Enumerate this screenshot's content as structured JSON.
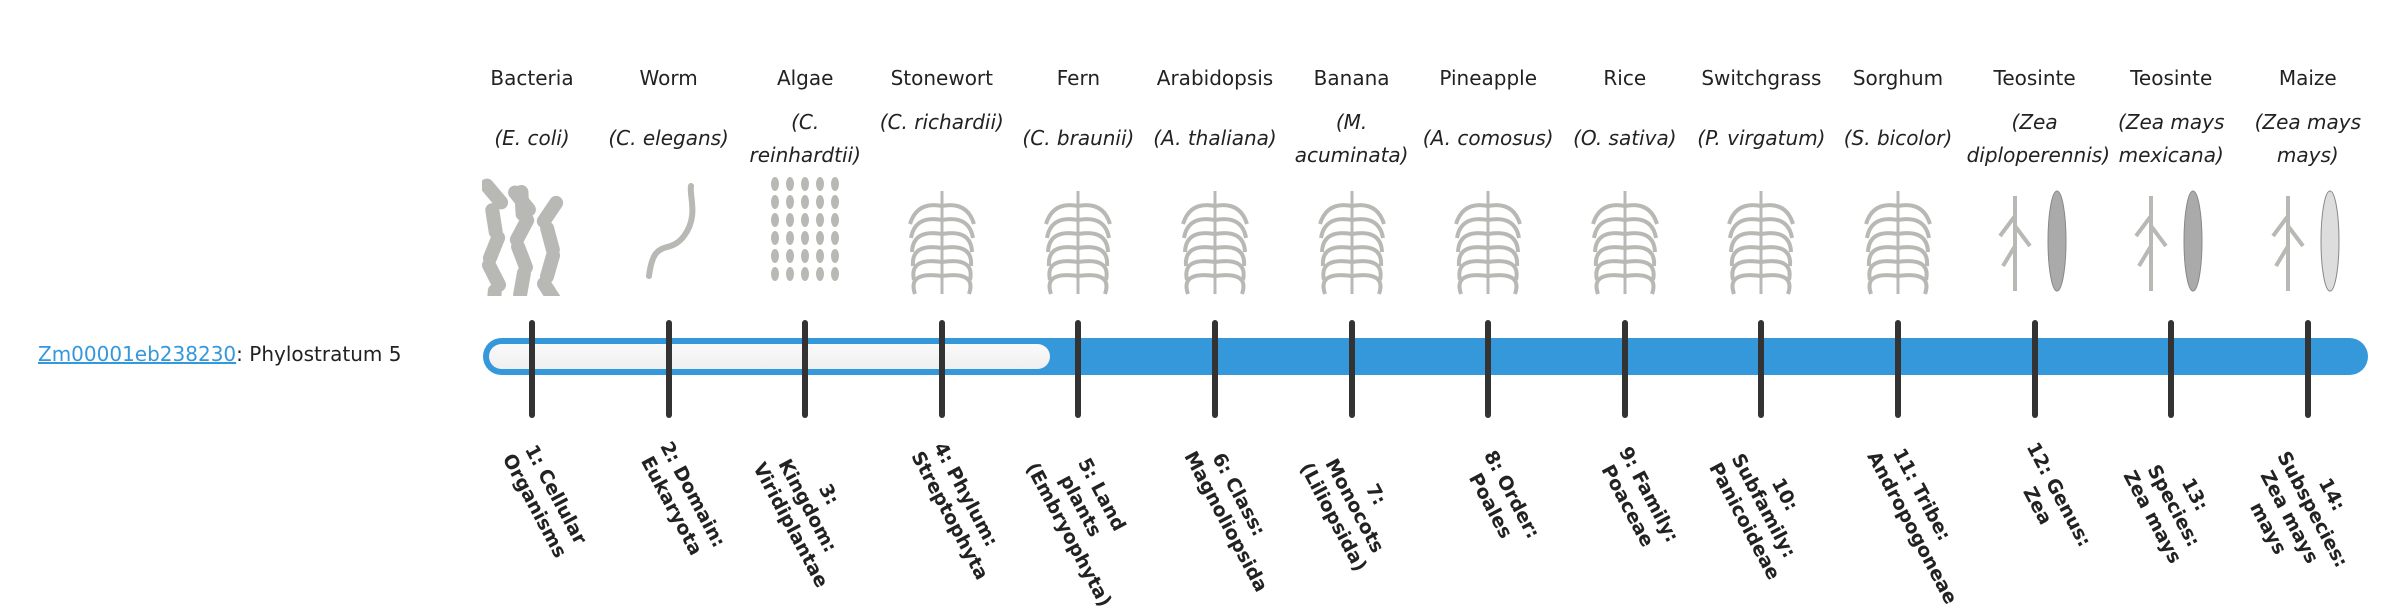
{
  "gene": {
    "id": "Zm00001eb238230",
    "suffix": ": Phylostratum 5",
    "phylostratum": 5
  },
  "colors": {
    "bar": "#3598db",
    "fill": "#f5f5f5",
    "tick": "#333333",
    "link": "#3498db"
  },
  "organisms": [
    {
      "common": "Bacteria",
      "sci": "(E. coli)",
      "icon": "bacteria-image"
    },
    {
      "common": "Worm",
      "sci": "(C. elegans)",
      "icon": "worm-image"
    },
    {
      "common": "Algae",
      "sci": "(C. reinhardtii)",
      "icon": "algae-image"
    },
    {
      "common": "Stonewort",
      "sci": "(C. richardii)",
      "icon": "stonewort-image"
    },
    {
      "common": "Fern",
      "sci": "(C. braunii)",
      "icon": "fern-image"
    },
    {
      "common": "Arabidopsis",
      "sci": "(A. thaliana)",
      "icon": "arabidopsis-image"
    },
    {
      "common": "Banana",
      "sci": "(M. acuminata)",
      "icon": "banana-image"
    },
    {
      "common": "Pineapple",
      "sci": "(A. comosus)",
      "icon": "pineapple-image"
    },
    {
      "common": "Rice",
      "sci": "(O. sativa)",
      "icon": "rice-image"
    },
    {
      "common": "Switchgrass",
      "sci": "(P. virgatum)",
      "icon": "switchgrass-image"
    },
    {
      "common": "Sorghum",
      "sci": "(S. bicolor)",
      "icon": "sorghum-image"
    },
    {
      "common": "Teosinte",
      "sci": "(Zea diploperennis)",
      "icon": "teosinte-image"
    },
    {
      "common": "Teosinte",
      "sci": "(Zea mays mexicana)",
      "icon": "teosinte-image"
    },
    {
      "common": "Maize",
      "sci": "(Zea mays mays)",
      "icon": "maize-image"
    }
  ],
  "strata": [
    "1: Cellular Organisms",
    "2: Domain: Eukaryota",
    "3: Kingdom: Viridiplantae",
    "4: Phylum: Streptophyta",
    "5: Land plants (Embryophyta)",
    "6: Class: Magnoliopsida",
    "7: Monocots (Liliopsida)",
    "8: Order: Poales",
    "9: Family: Poaceae",
    "10: Subfamily: Panicoideae",
    "11: Tribe: Andropogoneae",
    "12: Genus: Zea",
    "13: Species: Zea mays",
    "14: Subspecies: Zea mays mays"
  ]
}
